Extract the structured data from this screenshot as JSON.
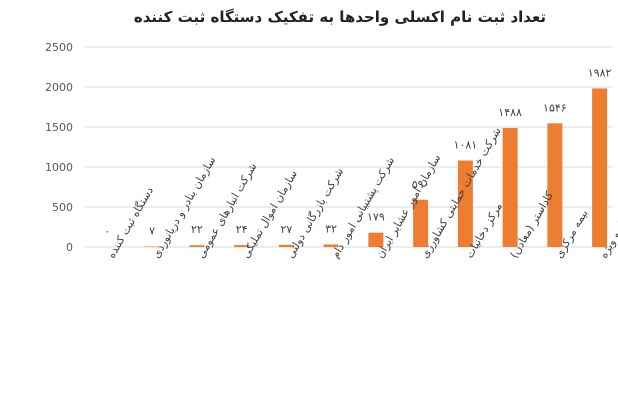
{
  "chart_data": {
    "type": "bar",
    "title": "تعداد ثبت نام اکسلی واحدها به تفکیک دستگاه ثبت کننده",
    "categories": [
      "دستگاه ثبت کننده",
      "سازمان بنادر و دریانوردی",
      "شرکت انبارهای عمومی",
      "سازمان اموال تملیکی",
      "شرکت بازرگانی دولتی",
      "شرکت پشتیبانی امور دام",
      "سازمان امور عشایر ایران",
      "شرکت خدمات حمایتی کشاورزی",
      "مرکز دخانیات",
      "کاداستر (معادن)",
      "بیمه مرکزی",
      "مناطق آزاد و ویژه"
    ],
    "values": [
      0,
      7,
      22,
      24,
      27,
      32,
      179,
      590,
      1081,
      1488,
      1546,
      1982
    ],
    "value_labels": [
      "۰",
      "۷",
      "۲۲",
      "۲۴",
      "۲۷",
      "۳۲",
      "۱۷۹",
      "۵۹۰",
      "۱۰۸۱",
      "۱۴۸۸",
      "۱۵۴۶",
      "۱۹۸۲"
    ],
    "y_ticks": [
      "0",
      "500",
      "1000",
      "1500",
      "2000",
      "2500"
    ],
    "ylim": [
      0,
      2500
    ],
    "grid": true,
    "legend": "none",
    "bar_color": "#ed7d31"
  }
}
